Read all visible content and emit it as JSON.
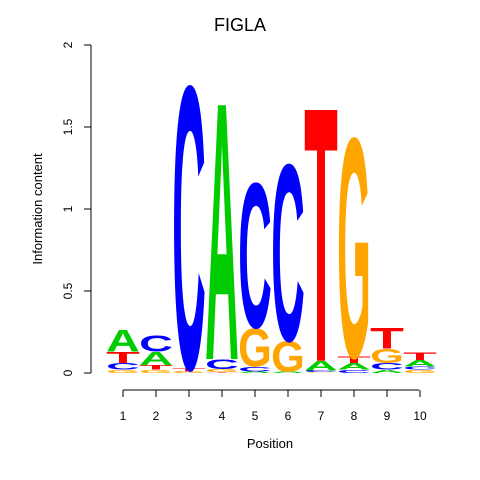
{
  "chart_data": {
    "type": "sequence-logo",
    "title": "FIGLA",
    "xlabel": "Position",
    "ylabel": "Information content",
    "ylim": [
      0,
      2
    ],
    "yticks": [
      "0",
      "0.5",
      "1",
      "1.5",
      "2"
    ],
    "positions": [
      "1",
      "2",
      "3",
      "4",
      "5",
      "6",
      "7",
      "8",
      "9",
      "10"
    ],
    "colors": {
      "A": "#00cc00",
      "C": "#0000ff",
      "G": "#ffa500",
      "T": "#ff0000"
    },
    "stacks": [
      [
        {
          "letter": "G",
          "height": 0.02
        },
        {
          "letter": "C",
          "height": 0.04
        },
        {
          "letter": "T",
          "height": 0.07
        },
        {
          "letter": "A",
          "height": 0.14
        }
      ],
      [
        {
          "letter": "G",
          "height": 0.02
        },
        {
          "letter": "T",
          "height": 0.03
        },
        {
          "letter": "A",
          "height": 0.08
        },
        {
          "letter": "C",
          "height": 0.1
        }
      ],
      [
        {
          "letter": "G",
          "height": 0.01
        },
        {
          "letter": "T",
          "height": 0.02
        },
        {
          "letter": "C",
          "height": 1.78
        }
      ],
      [
        {
          "letter": "T",
          "height": 0.005
        },
        {
          "letter": "G",
          "height": 0.02
        },
        {
          "letter": "C",
          "height": 0.06
        },
        {
          "letter": "A",
          "height": 1.62
        }
      ],
      [
        {
          "letter": "A",
          "height": 0.01
        },
        {
          "letter": "C",
          "height": 0.03
        },
        {
          "letter": "G",
          "height": 0.24
        },
        {
          "letter": "C",
          "height": 0.91
        }
      ],
      [
        {
          "letter": "A",
          "height": 0.01
        },
        {
          "letter": "G",
          "height": 0.19
        },
        {
          "letter": "C",
          "height": 1.11
        }
      ],
      [
        {
          "letter": "G",
          "height": 0.005
        },
        {
          "letter": "C",
          "height": 0.01
        },
        {
          "letter": "A",
          "height": 0.06
        },
        {
          "letter": "T",
          "height": 1.6
        }
      ],
      [
        {
          "letter": "C",
          "height": 0.02
        },
        {
          "letter": "A",
          "height": 0.04
        },
        {
          "letter": "T",
          "height": 0.04
        },
        {
          "letter": "G",
          "height": 1.38
        }
      ],
      [
        {
          "letter": "A",
          "height": 0.02
        },
        {
          "letter": "C",
          "height": 0.04
        },
        {
          "letter": "G",
          "height": 0.09
        },
        {
          "letter": "T",
          "height": 0.13
        }
      ],
      [
        {
          "letter": "G",
          "height": 0.02
        },
        {
          "letter": "C",
          "height": 0.02
        },
        {
          "letter": "A",
          "height": 0.04
        },
        {
          "letter": "T",
          "height": 0.05
        }
      ]
    ]
  }
}
